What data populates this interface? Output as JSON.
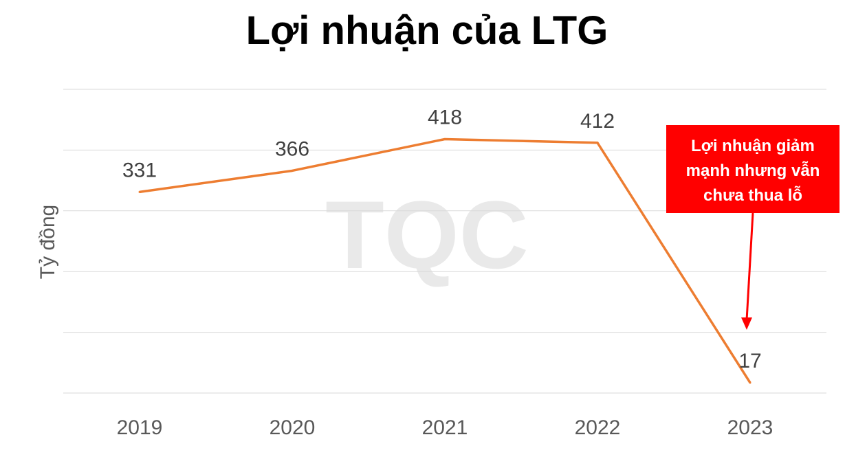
{
  "chart_data": {
    "type": "line",
    "title": "Lợi nhuận của LTG",
    "ylabel": "Tỷ đồng",
    "xlabel": "",
    "categories": [
      "2019",
      "2020",
      "2021",
      "2022",
      "2023"
    ],
    "series": [
      {
        "values": [
          331,
          366,
          418,
          412,
          17
        ],
        "color": "#ED7D31"
      }
    ],
    "ylim": [
      0,
      500
    ],
    "grid": true,
    "watermark": "TQC",
    "annotation": {
      "lines": [
        "Lợi nhuận giảm",
        "mạnh nhưng vẫn",
        "chưa thua lỗ"
      ],
      "background": "#FF0000",
      "text_color": "#FFFFFF",
      "points_to": "2023"
    }
  }
}
